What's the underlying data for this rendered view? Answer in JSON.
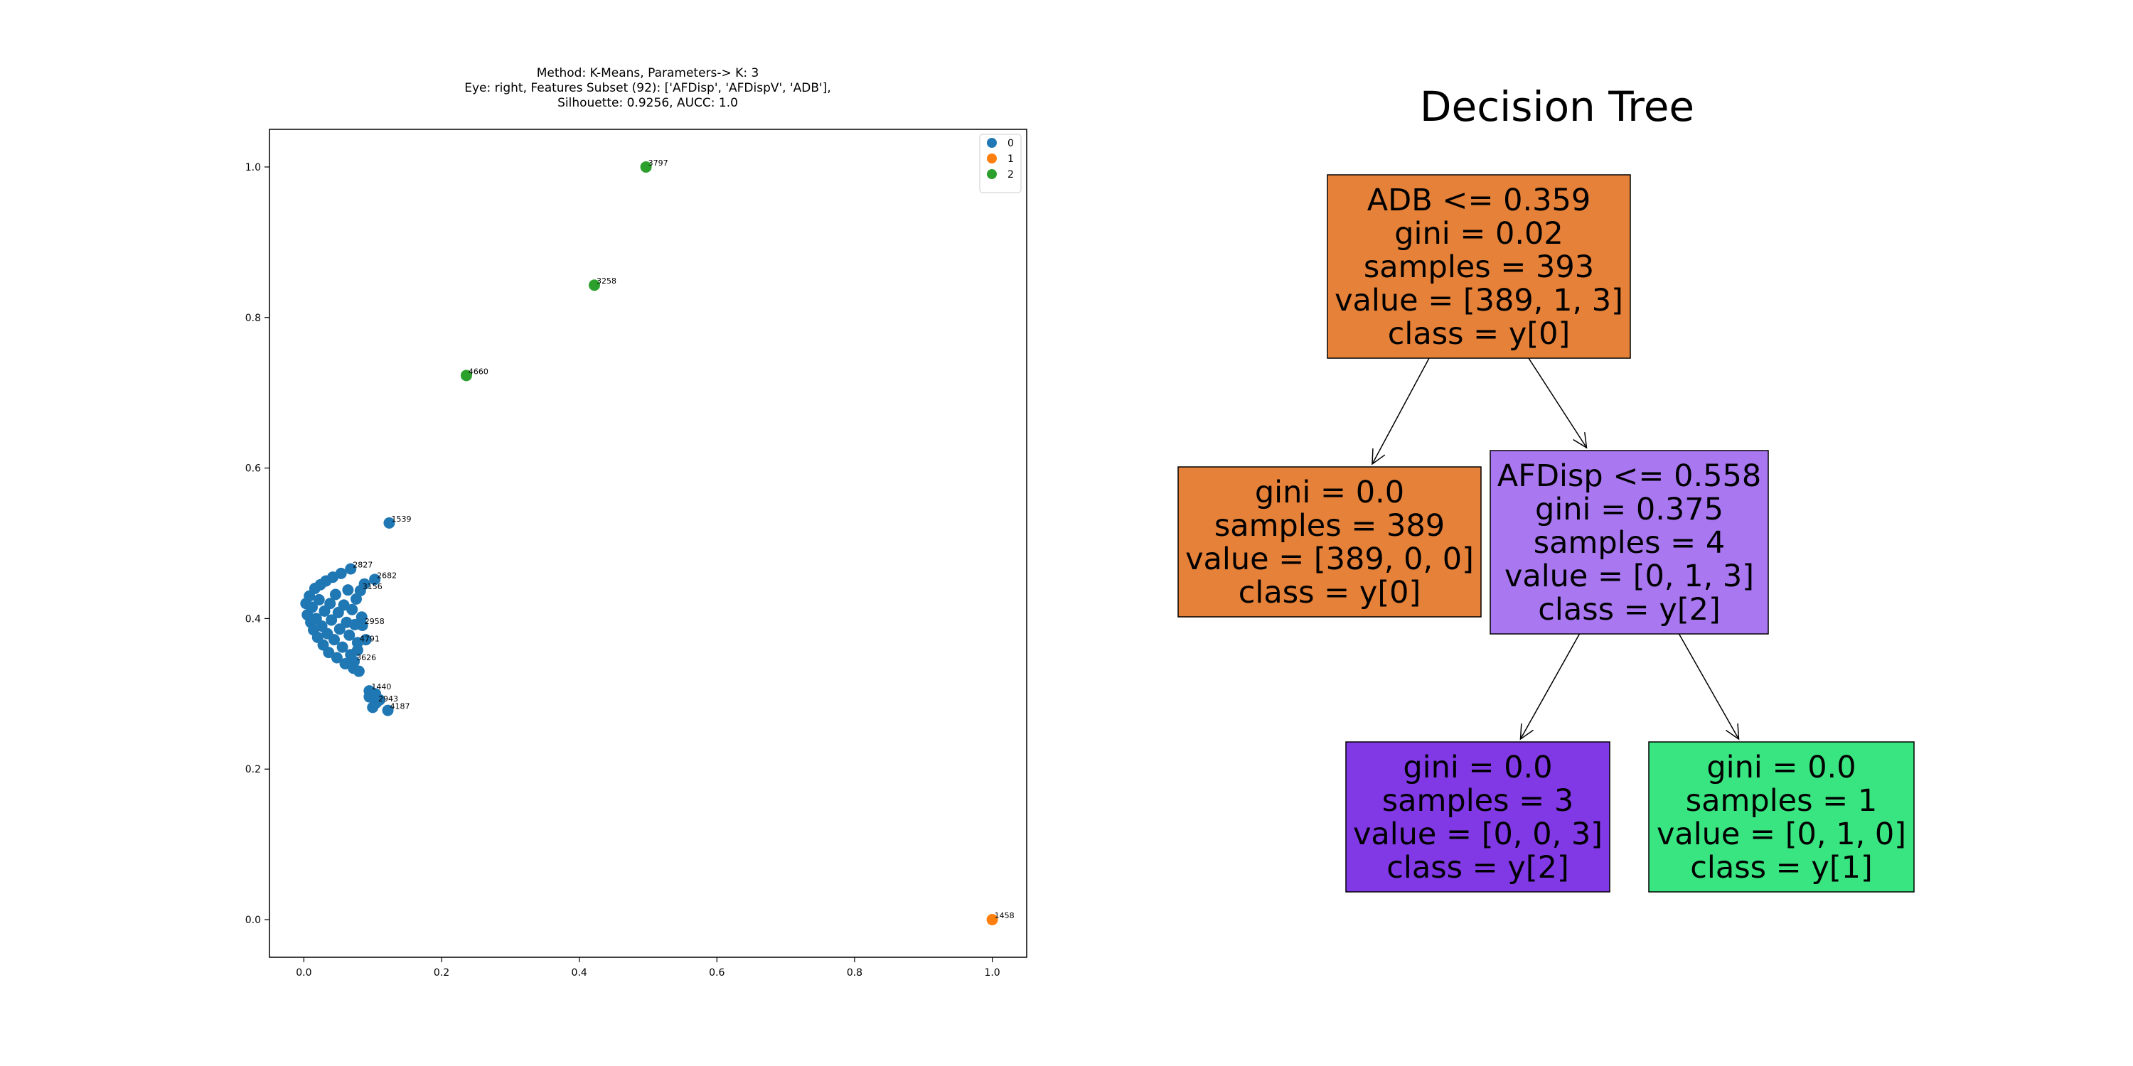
{
  "chart_data": [
    {
      "type": "scatter",
      "title_lines": [
        "Method: K-Means, Parameters-> K: 3",
        "Eye: right, Features Subset (92): ['AFDisp', 'AFDispV', 'ADB'],",
        "Silhouette: 0.9256, AUCC: 1.0"
      ],
      "xlabel": "",
      "ylabel": "",
      "xlim": [
        -0.05,
        1.05
      ],
      "ylim": [
        -0.05,
        1.05
      ],
      "xticks": [
        0.0,
        0.2,
        0.4,
        0.6,
        0.8,
        1.0
      ],
      "xtick_labels": [
        "0.0",
        "0.2",
        "0.4",
        "0.6",
        "0.8",
        "1.0"
      ],
      "yticks": [
        0.0,
        0.2,
        0.4,
        0.6,
        0.8,
        1.0
      ],
      "ytick_labels": [
        "0.0",
        "0.2",
        "0.4",
        "0.6",
        "0.8",
        "1.0"
      ],
      "grid": false,
      "legend": {
        "placement": "top-right",
        "entries": [
          {
            "label": "0",
            "color": "#1f77b4"
          },
          {
            "label": "1",
            "color": "#ff7f0e"
          },
          {
            "label": "2",
            "color": "#2ca02c"
          }
        ]
      },
      "series": [
        {
          "name": "0",
          "color": "#1f77b4",
          "points": [
            {
              "x": 0.124,
              "y": 0.527,
              "label": "1539"
            },
            {
              "x": 0.068,
              "y": 0.466,
              "label": "2827"
            },
            {
              "x": 0.103,
              "y": 0.452,
              "label": "2682"
            },
            {
              "x": 0.082,
              "y": 0.437,
              "label": "3156"
            },
            {
              "x": 0.085,
              "y": 0.391,
              "label": "2958"
            },
            {
              "x": 0.078,
              "y": 0.368,
              "label": "4791"
            },
            {
              "x": 0.073,
              "y": 0.343,
              "label": "3626"
            },
            {
              "x": 0.095,
              "y": 0.304,
              "label": "1440"
            },
            {
              "x": 0.105,
              "y": 0.288,
              "label": "2943"
            },
            {
              "x": 0.122,
              "y": 0.278,
              "label": "4187"
            },
            {
              "x": 0.003,
              "y": 0.42
            },
            {
              "x": 0.005,
              "y": 0.405
            },
            {
              "x": 0.008,
              "y": 0.43
            },
            {
              "x": 0.01,
              "y": 0.395
            },
            {
              "x": 0.012,
              "y": 0.415
            },
            {
              "x": 0.014,
              "y": 0.385
            },
            {
              "x": 0.016,
              "y": 0.44
            },
            {
              "x": 0.018,
              "y": 0.4
            },
            {
              "x": 0.02,
              "y": 0.375
            },
            {
              "x": 0.022,
              "y": 0.425
            },
            {
              "x": 0.024,
              "y": 0.445
            },
            {
              "x": 0.026,
              "y": 0.39
            },
            {
              "x": 0.028,
              "y": 0.365
            },
            {
              "x": 0.03,
              "y": 0.41
            },
            {
              "x": 0.032,
              "y": 0.45
            },
            {
              "x": 0.034,
              "y": 0.38
            },
            {
              "x": 0.036,
              "y": 0.355
            },
            {
              "x": 0.038,
              "y": 0.42
            },
            {
              "x": 0.04,
              "y": 0.398
            },
            {
              "x": 0.042,
              "y": 0.455
            },
            {
              "x": 0.044,
              "y": 0.372
            },
            {
              "x": 0.046,
              "y": 0.432
            },
            {
              "x": 0.048,
              "y": 0.348
            },
            {
              "x": 0.05,
              "y": 0.408
            },
            {
              "x": 0.052,
              "y": 0.386
            },
            {
              "x": 0.054,
              "y": 0.46
            },
            {
              "x": 0.056,
              "y": 0.362
            },
            {
              "x": 0.058,
              "y": 0.418
            },
            {
              "x": 0.06,
              "y": 0.34
            },
            {
              "x": 0.062,
              "y": 0.395
            },
            {
              "x": 0.064,
              "y": 0.438
            },
            {
              "x": 0.066,
              "y": 0.378
            },
            {
              "x": 0.068,
              "y": 0.352
            },
            {
              "x": 0.07,
              "y": 0.412
            },
            {
              "x": 0.072,
              "y": 0.334
            },
            {
              "x": 0.074,
              "y": 0.392
            },
            {
              "x": 0.076,
              "y": 0.426
            },
            {
              "x": 0.078,
              "y": 0.358
            },
            {
              "x": 0.08,
              "y": 0.33
            },
            {
              "x": 0.084,
              "y": 0.402
            },
            {
              "x": 0.088,
              "y": 0.446
            },
            {
              "x": 0.09,
              "y": 0.372
            },
            {
              "x": 0.095,
              "y": 0.296
            },
            {
              "x": 0.1,
              "y": 0.282
            },
            {
              "x": 0.104,
              "y": 0.3
            },
            {
              "x": 0.11,
              "y": 0.292
            }
          ]
        },
        {
          "name": "1",
          "color": "#ff7f0e",
          "points": [
            {
              "x": 1.0,
              "y": 0.0,
              "label": "1458"
            }
          ]
        },
        {
          "name": "2",
          "color": "#2ca02c",
          "points": [
            {
              "x": 0.497,
              "y": 1.0,
              "label": "3797"
            },
            {
              "x": 0.422,
              "y": 0.843,
              "label": "3258"
            },
            {
              "x": 0.236,
              "y": 0.723,
              "label": "4660"
            }
          ]
        }
      ]
    },
    {
      "type": "decision-tree",
      "title": "Decision Tree",
      "nodes": [
        {
          "id": "root",
          "color": "#e58139",
          "lines": [
            "ADB <= 0.359",
            "gini = 0.02",
            "samples = 393",
            "value = [389, 1, 3]",
            "class = y[0]"
          ]
        },
        {
          "id": "left",
          "color": "#e58139",
          "lines": [
            "gini = 0.0",
            "samples = 389",
            "value = [389, 0, 0]",
            "class = y[0]"
          ]
        },
        {
          "id": "right",
          "color": "#a978f1",
          "lines": [
            "AFDisp <= 0.558",
            "gini = 0.375",
            "samples = 4",
            "value = [0, 1, 3]",
            "class = y[2]"
          ]
        },
        {
          "id": "right-left",
          "color": "#8139e5",
          "lines": [
            "gini = 0.0",
            "samples = 3",
            "value = [0, 0, 3]",
            "class = y[2]"
          ]
        },
        {
          "id": "right-right",
          "color": "#39e581",
          "lines": [
            "gini = 0.0",
            "samples = 1",
            "value = [0, 1, 0]",
            "class = y[1]"
          ]
        }
      ],
      "edges": [
        {
          "from": "root",
          "to": "left"
        },
        {
          "from": "root",
          "to": "right"
        },
        {
          "from": "right",
          "to": "right-left"
        },
        {
          "from": "right",
          "to": "right-right"
        }
      ]
    }
  ]
}
